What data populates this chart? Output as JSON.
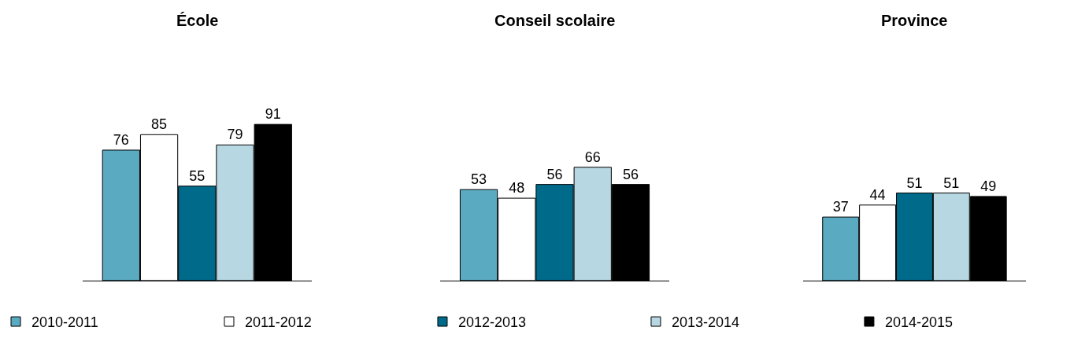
{
  "chart_data": [
    {
      "type": "bar",
      "title": "École",
      "categories": [
        null
      ],
      "data_labels": true,
      "legend": "bottom",
      "series": [
        {
          "name": "2010-2011",
          "color": "#5aaac1",
          "values": [
            76
          ]
        },
        {
          "name": "2011-2012",
          "color": "#ffffff",
          "values": [
            85
          ]
        },
        {
          "name": "2012-2013",
          "color": "#006a8a",
          "values": [
            55
          ]
        },
        {
          "name": "2013-2014",
          "color": "#b7d7e2",
          "values": [
            79
          ]
        },
        {
          "name": "2014-2015",
          "color": "#000000",
          "values": [
            91
          ]
        }
      ]
    },
    {
      "type": "bar",
      "title": "Conseil scolaire",
      "categories": [
        null
      ],
      "data_labels": true,
      "series": [
        {
          "color": "#5aaac1",
          "values": [
            53
          ]
        },
        {
          "color": "#ffffff",
          "values": [
            48
          ]
        },
        {
          "color": "#006a8a",
          "values": [
            56
          ]
        },
        {
          "color": "#b7d7e2",
          "values": [
            66
          ]
        },
        {
          "color": "#000000",
          "values": [
            56
          ]
        }
      ]
    },
    {
      "type": "bar",
      "title": "Province",
      "categories": [
        null
      ],
      "data_labels": true,
      "series": [
        {
          "color": "#5aaac1",
          "values": [
            37
          ]
        },
        {
          "color": "#ffffff",
          "values": [
            44
          ]
        },
        {
          "color": "#006a8a",
          "values": [
            51
          ]
        },
        {
          "color": "#b7d7e2",
          "values": [
            51
          ]
        },
        {
          "color": "#000000",
          "values": [
            49
          ]
        }
      ]
    }
  ]
}
